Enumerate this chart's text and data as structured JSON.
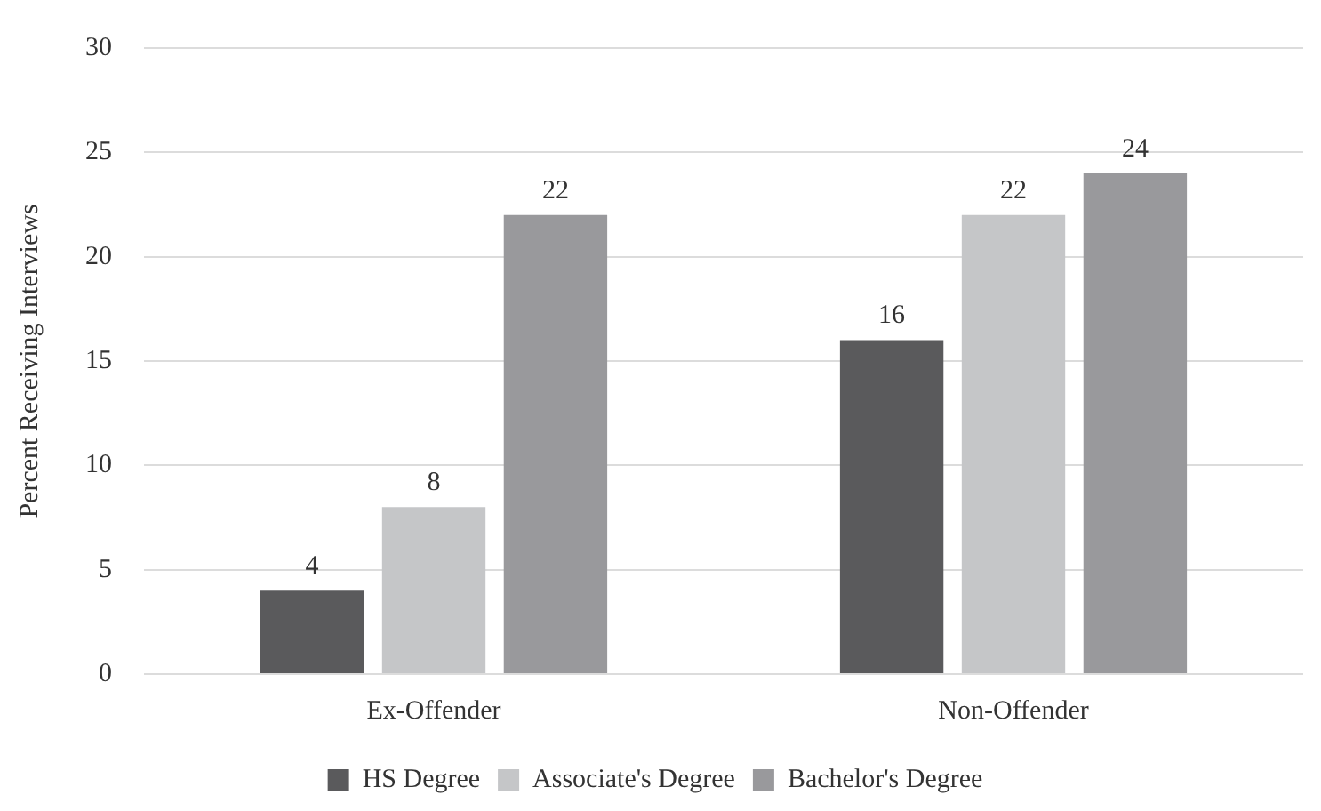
{
  "chart_data": {
    "type": "bar",
    "ylabel": "Percent Receiving Interviews",
    "categories": [
      "Ex-Offender",
      "Non-Offender"
    ],
    "series": [
      {
        "name": "HS Degree",
        "color": "#5a5a5c",
        "values": [
          4,
          16
        ]
      },
      {
        "name": "Associate's Degree",
        "color": "#c5c6c8",
        "values": [
          8,
          22
        ]
      },
      {
        "name": "Bachelor's Degree",
        "color": "#99999c",
        "values": [
          22,
          24
        ]
      }
    ],
    "ylim": [
      0,
      30
    ],
    "yticks": [
      0,
      5,
      10,
      15,
      20,
      25,
      30
    ],
    "grid": "y",
    "legend": "bottom",
    "data_labels": true
  }
}
